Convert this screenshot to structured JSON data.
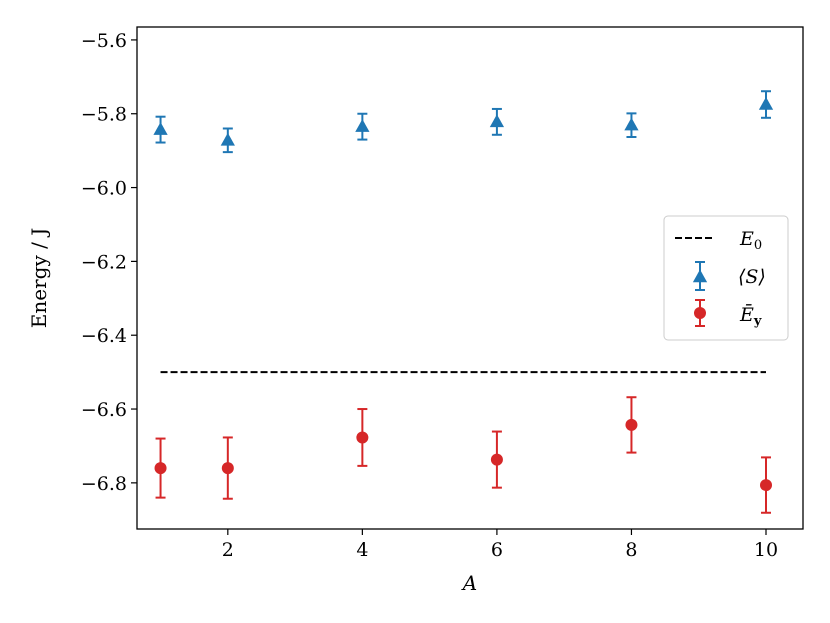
{
  "chart_data": {
    "type": "scatter",
    "title": "",
    "xlabel": "A",
    "ylabel": "Energy / J",
    "xlim": [
      0.65,
      10.55
    ],
    "ylim": [
      -6.925,
      -5.565
    ],
    "xticks": [
      2,
      4,
      6,
      8,
      10
    ],
    "xtick_labels": [
      "2",
      "4",
      "6",
      "8",
      "10"
    ],
    "yticks": [
      -6.8,
      -6.6,
      -6.4,
      -6.2,
      -6.0,
      -5.8,
      -5.6
    ],
    "ytick_labels": [
      "−6.8",
      "−6.6",
      "−6.4",
      "−6.2",
      "−6.0",
      "−5.8",
      "−5.6"
    ],
    "grid": false,
    "legend_position": "right",
    "reference_line": {
      "name": "E0",
      "label_main": "E",
      "label_sub": "0",
      "y": -6.5,
      "x_range": [
        1,
        10
      ],
      "style": "dashed",
      "color": "#000000"
    },
    "series": [
      {
        "name": "⟨S⟩",
        "label_main": "⟨S⟩",
        "marker": "triangle",
        "color": "#1f77b4",
        "x": [
          1,
          2,
          4,
          6,
          8,
          10
        ],
        "y": [
          -5.843,
          -5.872,
          -5.835,
          -5.822,
          -5.831,
          -5.775
        ],
        "err": [
          0.035,
          0.032,
          0.035,
          0.035,
          0.032,
          0.036
        ]
      },
      {
        "name": "Ē_y",
        "label_main": "Ē",
        "label_sub": "y",
        "marker": "circle",
        "color": "#d62728",
        "x": [
          1,
          2,
          4,
          6,
          8,
          10
        ],
        "y": [
          -6.76,
          -6.76,
          -6.677,
          -6.737,
          -6.643,
          -6.806
        ],
        "err": [
          0.08,
          0.083,
          0.077,
          0.076,
          0.075,
          0.075
        ]
      }
    ]
  }
}
